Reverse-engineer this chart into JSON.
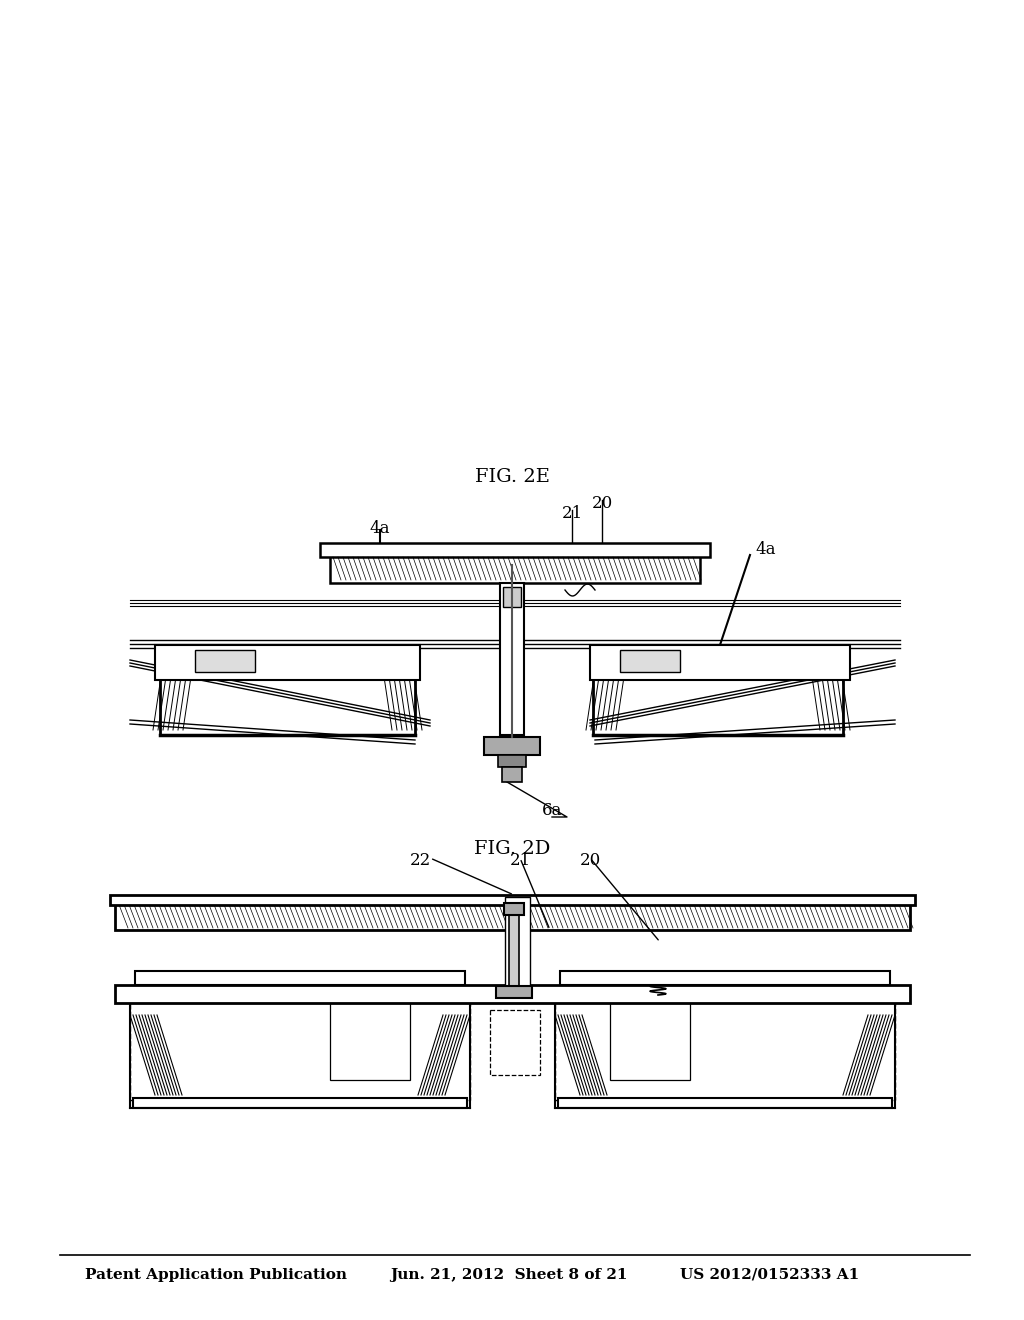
{
  "background_color": "#ffffff",
  "header_text1": "Patent Application Publication",
  "header_text2": "Jun. 21, 2012  Sheet 8 of 21",
  "header_text3": "US 2012/0152333 A1",
  "fig2d_label": "FIG. 2D",
  "fig2e_label": "FIG. 2E",
  "label_22": "22",
  "label_21_2d": "21",
  "label_20_2d": "20",
  "label_6a": "6a",
  "label_4a_left": "4a",
  "label_4a_right": "4a",
  "label_21_2e": "21",
  "label_20_2e": "20",
  "line_color": "#000000",
  "hatch_color": "#000000"
}
